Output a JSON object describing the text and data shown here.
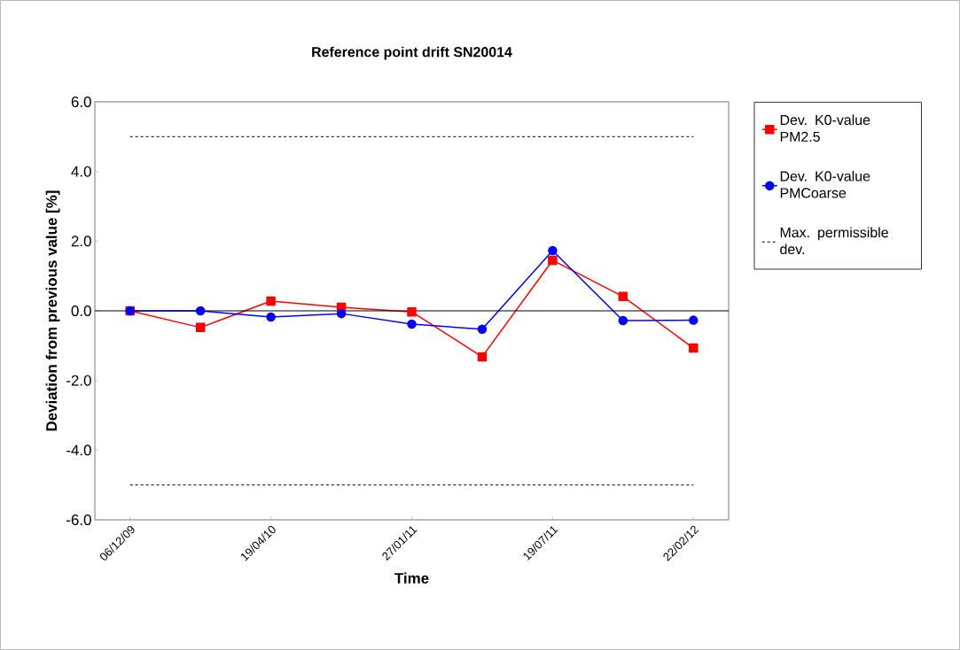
{
  "chart_data": {
    "type": "line",
    "title": "Reference point drift SN20014",
    "xlabel": "Time",
    "ylabel": "Deviation from previous value [%]",
    "categories": [
      "06/12/09",
      null,
      "19/04/10",
      null,
      "27/01/11",
      null,
      "19/07/11",
      null,
      "22/02/12"
    ],
    "series": [
      {
        "name": "Dev. K0-value PM2.5",
        "color": "#ff0000",
        "marker": "square",
        "values": [
          0.0,
          -0.48,
          0.28,
          0.1,
          -0.03,
          -1.32,
          1.45,
          0.41,
          -1.07
        ]
      },
      {
        "name": "Dev. K0-value PMCoarse",
        "color": "#0000ff",
        "marker": "circle",
        "values": [
          0.0,
          0.0,
          -0.18,
          -0.08,
          -0.38,
          -0.53,
          1.73,
          -0.28,
          -0.27
        ]
      }
    ],
    "ylim": [
      -6,
      6
    ],
    "yticks": [
      {
        "value": -6,
        "label": "-6.0"
      },
      {
        "value": -4,
        "label": "-4.0"
      },
      {
        "value": -2,
        "label": "-2.0"
      },
      {
        "value": 0,
        "label": "0.0"
      },
      {
        "value": 2,
        "label": "2.0"
      },
      {
        "value": 4,
        "label": "4.0"
      },
      {
        "value": 6,
        "label": "6.0"
      }
    ],
    "ref_lines": [
      {
        "axis": "y",
        "value": 5,
        "label": "Max. permissible dev.",
        "color": "#000000",
        "line_style": "dashed"
      },
      {
        "axis": "y",
        "value": -5,
        "color": "#000000",
        "line_style": "dashed"
      },
      {
        "axis": "y",
        "value": 0,
        "color": "#000000",
        "line_style": "solid"
      }
    ],
    "legend": "right",
    "grid": false
  }
}
